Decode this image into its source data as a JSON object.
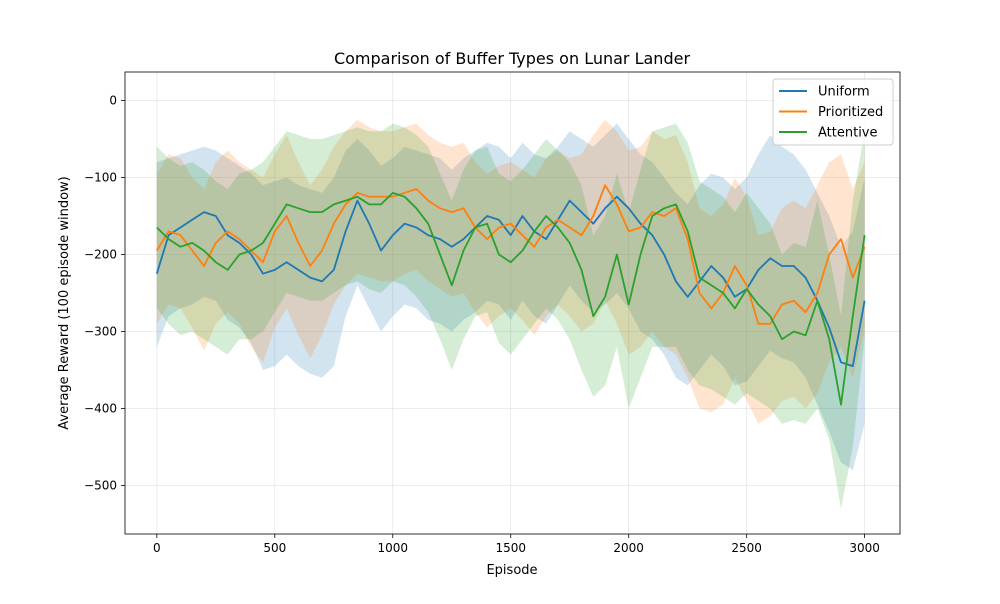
{
  "chart_data": {
    "type": "line",
    "title": "Comparison of Buffer Types on Lunar Lander",
    "xlabel": "Episode",
    "ylabel": "Average Reward (100 episode window)",
    "xlim": [
      -135,
      3150
    ],
    "ylim": [
      -563,
      37
    ],
    "xticks": [
      0,
      500,
      1000,
      1500,
      2000,
      2500,
      3000
    ],
    "xtick_labels": [
      "0",
      "500",
      "1000",
      "1500",
      "2000",
      "2500",
      "3000"
    ],
    "yticks": [
      0,
      -100,
      -200,
      -300,
      -400,
      -500
    ],
    "ytick_labels": [
      "0",
      "−100",
      "−200",
      "−300",
      "−400",
      "−500"
    ],
    "grid": true,
    "legend_position": "upper right",
    "series": [
      {
        "name": "Uniform",
        "color": "#1f77b4",
        "x": [
          0,
          50,
          100,
          150,
          200,
          250,
          300,
          350,
          400,
          450,
          500,
          550,
          600,
          650,
          700,
          750,
          800,
          850,
          900,
          950,
          1000,
          1050,
          1100,
          1150,
          1200,
          1250,
          1300,
          1350,
          1400,
          1450,
          1500,
          1550,
          1600,
          1650,
          1700,
          1750,
          1800,
          1850,
          1900,
          1950,
          2000,
          2050,
          2100,
          2150,
          2200,
          2250,
          2300,
          2350,
          2400,
          2450,
          2500,
          2550,
          2600,
          2650,
          2700,
          2750,
          2800,
          2850,
          2900,
          2950,
          3000
        ],
        "mean": [
          -225,
          -175,
          -165,
          -155,
          -145,
          -150,
          -175,
          -185,
          -200,
          -225,
          -220,
          -210,
          -220,
          -230,
          -235,
          -220,
          -170,
          -130,
          -160,
          -195,
          -175,
          -160,
          -165,
          -175,
          -180,
          -190,
          -180,
          -165,
          -150,
          -155,
          -175,
          -150,
          -170,
          -180,
          -155,
          -130,
          -145,
          -160,
          -140,
          -125,
          -140,
          -160,
          -175,
          -200,
          -235,
          -255,
          -235,
          -215,
          -230,
          -255,
          -245,
          -220,
          -205,
          -215,
          -215,
          -230,
          -260,
          -295,
          -340,
          -345,
          -260
        ],
        "lower": [
          -320,
          -280,
          -270,
          -265,
          -255,
          -260,
          -285,
          -295,
          -315,
          -350,
          -345,
          -330,
          -345,
          -355,
          -360,
          -345,
          -280,
          -240,
          -270,
          -300,
          -280,
          -265,
          -270,
          -285,
          -290,
          -300,
          -285,
          -275,
          -260,
          -265,
          -285,
          -260,
          -280,
          -290,
          -265,
          -240,
          -260,
          -275,
          -265,
          -250,
          -270,
          -300,
          -310,
          -330,
          -360,
          -370,
          -350,
          -330,
          -345,
          -370,
          -365,
          -345,
          -325,
          -335,
          -340,
          -360,
          -395,
          -430,
          -470,
          -480,
          -420
        ],
        "upper": [
          -80,
          -75,
          -70,
          -65,
          -60,
          -65,
          -75,
          -85,
          -95,
          -110,
          -105,
          -100,
          -110,
          -115,
          -120,
          -100,
          -65,
          -50,
          -65,
          -85,
          -75,
          -60,
          -65,
          -70,
          -75,
          -90,
          -75,
          -65,
          -55,
          -60,
          -75,
          -55,
          -70,
          -75,
          -60,
          -40,
          -50,
          -60,
          -45,
          -30,
          -50,
          -70,
          -80,
          -100,
          -120,
          -135,
          -110,
          -95,
          -100,
          -115,
          -100,
          -70,
          -45,
          -60,
          -70,
          -90,
          -120,
          -150,
          -190,
          -170,
          -100
        ]
      },
      {
        "name": "Prioritized",
        "color": "#ff7f0e",
        "x": [
          0,
          50,
          100,
          150,
          200,
          250,
          300,
          350,
          400,
          450,
          500,
          550,
          600,
          650,
          700,
          750,
          800,
          850,
          900,
          950,
          1000,
          1050,
          1100,
          1150,
          1200,
          1250,
          1300,
          1350,
          1400,
          1450,
          1500,
          1550,
          1600,
          1650,
          1700,
          1750,
          1800,
          1850,
          1900,
          1950,
          2000,
          2050,
          2100,
          2150,
          2200,
          2250,
          2300,
          2350,
          2400,
          2450,
          2500,
          2550,
          2600,
          2650,
          2700,
          2750,
          2800,
          2850,
          2900,
          2950,
          3000
        ],
        "mean": [
          -195,
          -170,
          -175,
          -195,
          -215,
          -185,
          -170,
          -180,
          -195,
          -210,
          -170,
          -150,
          -185,
          -215,
          -195,
          -160,
          -135,
          -120,
          -125,
          -125,
          -125,
          -120,
          -115,
          -130,
          -140,
          -145,
          -140,
          -165,
          -180,
          -165,
          -160,
          -175,
          -190,
          -165,
          -155,
          -165,
          -175,
          -150,
          -110,
          -135,
          -170,
          -165,
          -145,
          -150,
          -140,
          -180,
          -250,
          -270,
          -250,
          -215,
          -240,
          -290,
          -290,
          -265,
          -260,
          -275,
          -250,
          -200,
          -180,
          -230,
          -190
        ],
        "lower": [
          -290,
          -265,
          -270,
          -295,
          -325,
          -290,
          -275,
          -290,
          -320,
          -340,
          -295,
          -270,
          -305,
          -335,
          -305,
          -265,
          -240,
          -225,
          -230,
          -235,
          -235,
          -225,
          -220,
          -235,
          -245,
          -255,
          -250,
          -275,
          -295,
          -280,
          -270,
          -285,
          -305,
          -280,
          -265,
          -280,
          -300,
          -290,
          -260,
          -290,
          -330,
          -320,
          -300,
          -320,
          -330,
          -360,
          -400,
          -405,
          -395,
          -360,
          -390,
          -420,
          -410,
          -390,
          -385,
          -400,
          -380,
          -340,
          -320,
          -360,
          -300
        ],
        "upper": [
          -95,
          -70,
          -75,
          -100,
          -115,
          -80,
          -65,
          -80,
          -90,
          -100,
          -70,
          -45,
          -80,
          -110,
          -90,
          -60,
          -40,
          -25,
          -35,
          -40,
          -40,
          -35,
          -30,
          -45,
          -55,
          -60,
          -55,
          -80,
          -95,
          -85,
          -80,
          -90,
          -100,
          -75,
          -65,
          -75,
          -70,
          -45,
          -25,
          -40,
          -65,
          -60,
          -40,
          -50,
          -45,
          -80,
          -140,
          -150,
          -135,
          -100,
          -125,
          -175,
          -170,
          -140,
          -130,
          -140,
          -110,
          -80,
          -70,
          -115,
          -80
        ]
      },
      {
        "name": "Attentive",
        "color": "#2ca02c",
        "x": [
          0,
          50,
          100,
          150,
          200,
          250,
          300,
          350,
          400,
          450,
          500,
          550,
          600,
          650,
          700,
          750,
          800,
          850,
          900,
          950,
          1000,
          1050,
          1100,
          1150,
          1200,
          1250,
          1300,
          1350,
          1400,
          1450,
          1500,
          1550,
          1600,
          1650,
          1700,
          1750,
          1800,
          1850,
          1900,
          1950,
          2000,
          2050,
          2100,
          2150,
          2200,
          2250,
          2300,
          2350,
          2400,
          2450,
          2500,
          2550,
          2600,
          2650,
          2700,
          2750,
          2800,
          2850,
          2900,
          2950,
          3000
        ],
        "mean": [
          -165,
          -180,
          -190,
          -185,
          -195,
          -210,
          -220,
          -200,
          -195,
          -185,
          -160,
          -135,
          -140,
          -145,
          -145,
          -135,
          -130,
          -125,
          -135,
          -135,
          -120,
          -125,
          -140,
          -160,
          -200,
          -240,
          -195,
          -165,
          -160,
          -200,
          -210,
          -195,
          -170,
          -150,
          -165,
          -185,
          -220,
          -280,
          -255,
          -200,
          -265,
          -200,
          -150,
          -140,
          -135,
          -170,
          -230,
          -240,
          -250,
          -270,
          -245,
          -265,
          -280,
          -310,
          -300,
          -305,
          -260,
          -310,
          -395,
          -280,
          -175
        ],
        "lower": [
          -270,
          -290,
          -305,
          -300,
          -310,
          -320,
          -330,
          -310,
          -310,
          -300,
          -275,
          -250,
          -255,
          -260,
          -260,
          -250,
          -240,
          -235,
          -245,
          -250,
          -235,
          -240,
          -255,
          -275,
          -310,
          -350,
          -310,
          -280,
          -275,
          -315,
          -330,
          -310,
          -290,
          -270,
          -285,
          -310,
          -350,
          -385,
          -370,
          -320,
          -400,
          -360,
          -320,
          -320,
          -320,
          -350,
          -370,
          -375,
          -385,
          -395,
          -380,
          -390,
          -400,
          -420,
          -415,
          -420,
          -400,
          -440,
          -530,
          -450,
          -310
        ],
        "upper": [
          -60,
          -75,
          -85,
          -80,
          -90,
          -105,
          -115,
          -95,
          -90,
          -80,
          -60,
          -40,
          -45,
          -50,
          -50,
          -45,
          -40,
          -35,
          -40,
          -40,
          -30,
          -35,
          -45,
          -60,
          -95,
          -130,
          -90,
          -65,
          -60,
          -95,
          -105,
          -90,
          -70,
          -50,
          -65,
          -80,
          -110,
          -175,
          -150,
          -95,
          -145,
          -90,
          -40,
          -35,
          -30,
          -55,
          -105,
          -115,
          -125,
          -145,
          -120,
          -140,
          -160,
          -200,
          -185,
          -190,
          -130,
          -200,
          -280,
          -130,
          -40
        ]
      }
    ]
  }
}
